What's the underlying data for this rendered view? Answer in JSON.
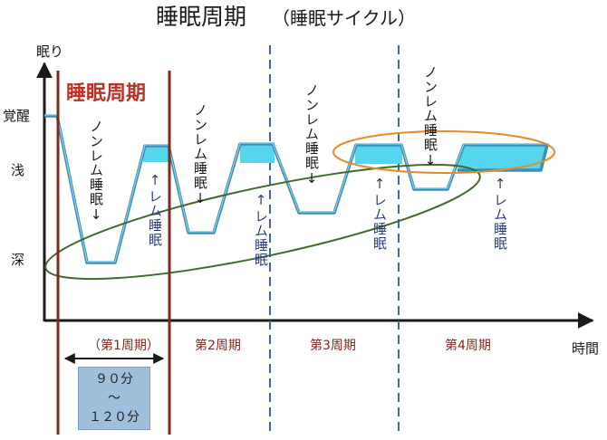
{
  "title": "睡眠周期",
  "subtitle": "（睡眠サイクル）",
  "y_axis_title": "眠り",
  "x_axis_title": "時間",
  "levels": [
    "覚醒",
    "浅",
    "深"
  ],
  "cycle_highlight_label": "睡眠周期",
  "nrem_label": "ノンレム睡眠↓",
  "rem_label": "↑レム睡眠",
  "cycles": [
    "（第1周期）",
    "第2周期",
    "第3周期",
    "第4周期"
  ],
  "duration": {
    "line1": "９０分",
    "line2": "〜",
    "line3": "１２０分"
  },
  "colors": {
    "sleep_line": "#3a8fb8",
    "rem_fill": "#55d5ee",
    "cycle_red": "#7d2a1f",
    "label_red": "#b83226",
    "dashed_blue": "#3a6aa0",
    "ellipse_green": "#3f6b2a",
    "ellipse_orange": "#e98a28",
    "duration_box": "#9fbfdc"
  }
}
